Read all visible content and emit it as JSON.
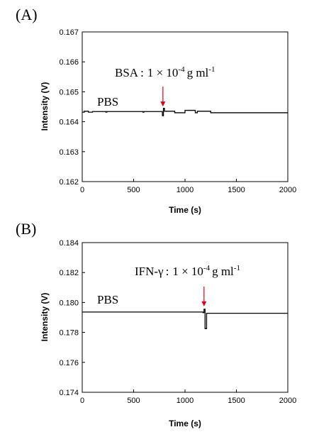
{
  "chart_data": [
    {
      "type": "line",
      "panel_label": "(A)",
      "xlabel": "Time (s)",
      "ylabel": "Intensity (V)",
      "xlim": [
        0,
        2000
      ],
      "ylim": [
        0.162,
        0.167
      ],
      "xticks": [
        0,
        500,
        1000,
        1500,
        2000
      ],
      "yticks": [
        0.162,
        0.163,
        0.164,
        0.165,
        0.166,
        0.167
      ],
      "ytick_labels": [
        "0.162",
        "0.163",
        "0.164",
        "0.165",
        "0.166",
        "0.167"
      ],
      "baseline_label": "PBS",
      "annotation": {
        "prefix": "BSA",
        "sep": ":",
        "value": "1 × 10",
        "exp": "-4",
        "unit": "g ml",
        "unit_exp": "-1"
      },
      "arrow_at_x": 785,
      "series": [
        {
          "x": [
            0,
            20,
            20,
            60,
            60,
            100,
            100,
            230,
            230,
            240,
            240,
            590,
            590,
            600,
            600,
            780,
            780,
            790,
            790,
            800,
            800,
            900,
            900,
            1000,
            1000,
            1100,
            1100,
            1120,
            1120,
            1250,
            1250,
            2000
          ],
          "y": [
            0.16432,
            0.16432,
            0.16435,
            0.16435,
            0.16432,
            0.16432,
            0.16434,
            0.16434,
            0.16432,
            0.16432,
            0.16434,
            0.16434,
            0.16432,
            0.16432,
            0.16434,
            0.16434,
            0.1642,
            0.1642,
            0.16445,
            0.16445,
            0.16435,
            0.16435,
            0.1643,
            0.1643,
            0.16438,
            0.16438,
            0.1643,
            0.1643,
            0.16435,
            0.16435,
            0.1643,
            0.1643
          ]
        }
      ]
    },
    {
      "type": "line",
      "panel_label": "(B)",
      "xlabel": "Time (s)",
      "ylabel": "Intensity (V)",
      "xlim": [
        0,
        2000
      ],
      "ylim": [
        0.174,
        0.184
      ],
      "xticks": [
        0,
        500,
        1000,
        1500,
        2000
      ],
      "yticks": [
        0.174,
        0.176,
        0.178,
        0.18,
        0.182,
        0.184
      ],
      "ytick_labels": [
        "0.174",
        "0.176",
        "0.178",
        "0.180",
        "0.182",
        "0.184"
      ],
      "baseline_label": "PBS",
      "annotation": {
        "prefix": "IFN-γ",
        "sep": ":",
        "value": "1 × 10",
        "exp": "-4",
        "unit": "g ml",
        "unit_exp": "-1"
      },
      "arrow_at_x": 1185,
      "series": [
        {
          "x": [
            0,
            1175,
            1175,
            1185,
            1185,
            1195,
            1195,
            1210,
            1210,
            2000
          ],
          "y": [
            0.17936,
            0.17936,
            0.17932,
            0.17932,
            0.17955,
            0.17955,
            0.17825,
            0.17825,
            0.17928,
            0.17928
          ]
        }
      ]
    }
  ]
}
